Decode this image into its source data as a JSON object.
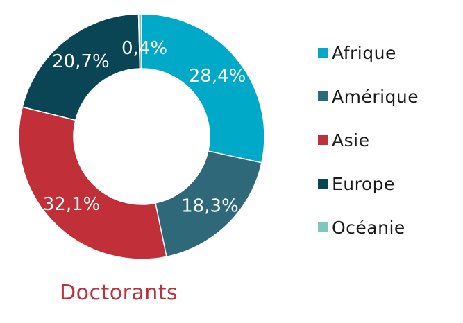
{
  "chart_data": {
    "type": "pie",
    "title": "Doctorants",
    "categories": [
      "Afrique",
      "Amérique",
      "Asie",
      "Europe",
      "Océanie"
    ],
    "values": [
      28.4,
      18.3,
      32.1,
      20.7,
      0.4
    ],
    "labels": [
      "28,4%",
      "18,3%",
      "32,1%",
      "20,7%",
      "0,4%"
    ],
    "colors": [
      "#00a9c8",
      "#2f6878",
      "#c12f39",
      "#0a4555",
      "#7cc7bf"
    ],
    "donut": true,
    "legend_position": "right"
  }
}
